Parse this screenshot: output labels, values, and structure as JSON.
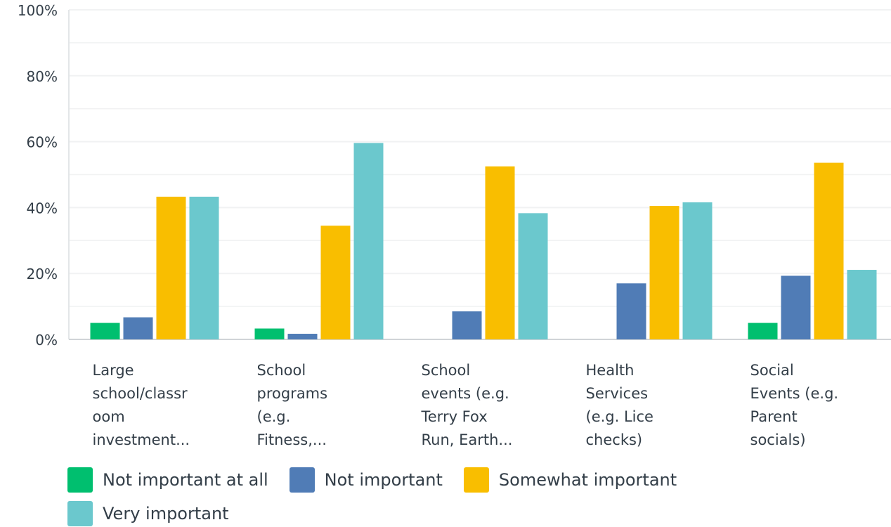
{
  "chart_data": {
    "type": "bar",
    "categories": [
      [
        "Large",
        "school/classr",
        "oom",
        "investment..."
      ],
      [
        "School",
        "programs",
        "(e.g.",
        "Fitness,..."
      ],
      [
        "School",
        "events (e.g.",
        "Terry Fox",
        "Run, Earth..."
      ],
      [
        "Health",
        "Services",
        "(e.g. Lice",
        "checks)"
      ],
      [
        "Social",
        "Events (e.g.",
        "Parent",
        "socials)"
      ]
    ],
    "series": [
      {
        "name": "Not important at all",
        "color": "#00bf6f",
        "values": [
          5,
          3.3,
          0,
          0,
          5
        ]
      },
      {
        "name": "Not important",
        "color": "#507cb6",
        "values": [
          6.7,
          1.7,
          8.5,
          17,
          19.3
        ]
      },
      {
        "name": "Somewhat important",
        "color": "#f9be00",
        "values": [
          43.3,
          34.5,
          52.5,
          40.5,
          53.6
        ]
      },
      {
        "name": "Very important",
        "color": "#6bc8cd",
        "values": [
          43.3,
          59.6,
          38.3,
          41.6,
          21.1
        ]
      }
    ],
    "yticks": [
      "0%",
      "20%",
      "40%",
      "60%",
      "80%",
      "100%"
    ],
    "ylim": [
      0,
      100
    ],
    "grid": true,
    "legend_position": "bottom"
  }
}
